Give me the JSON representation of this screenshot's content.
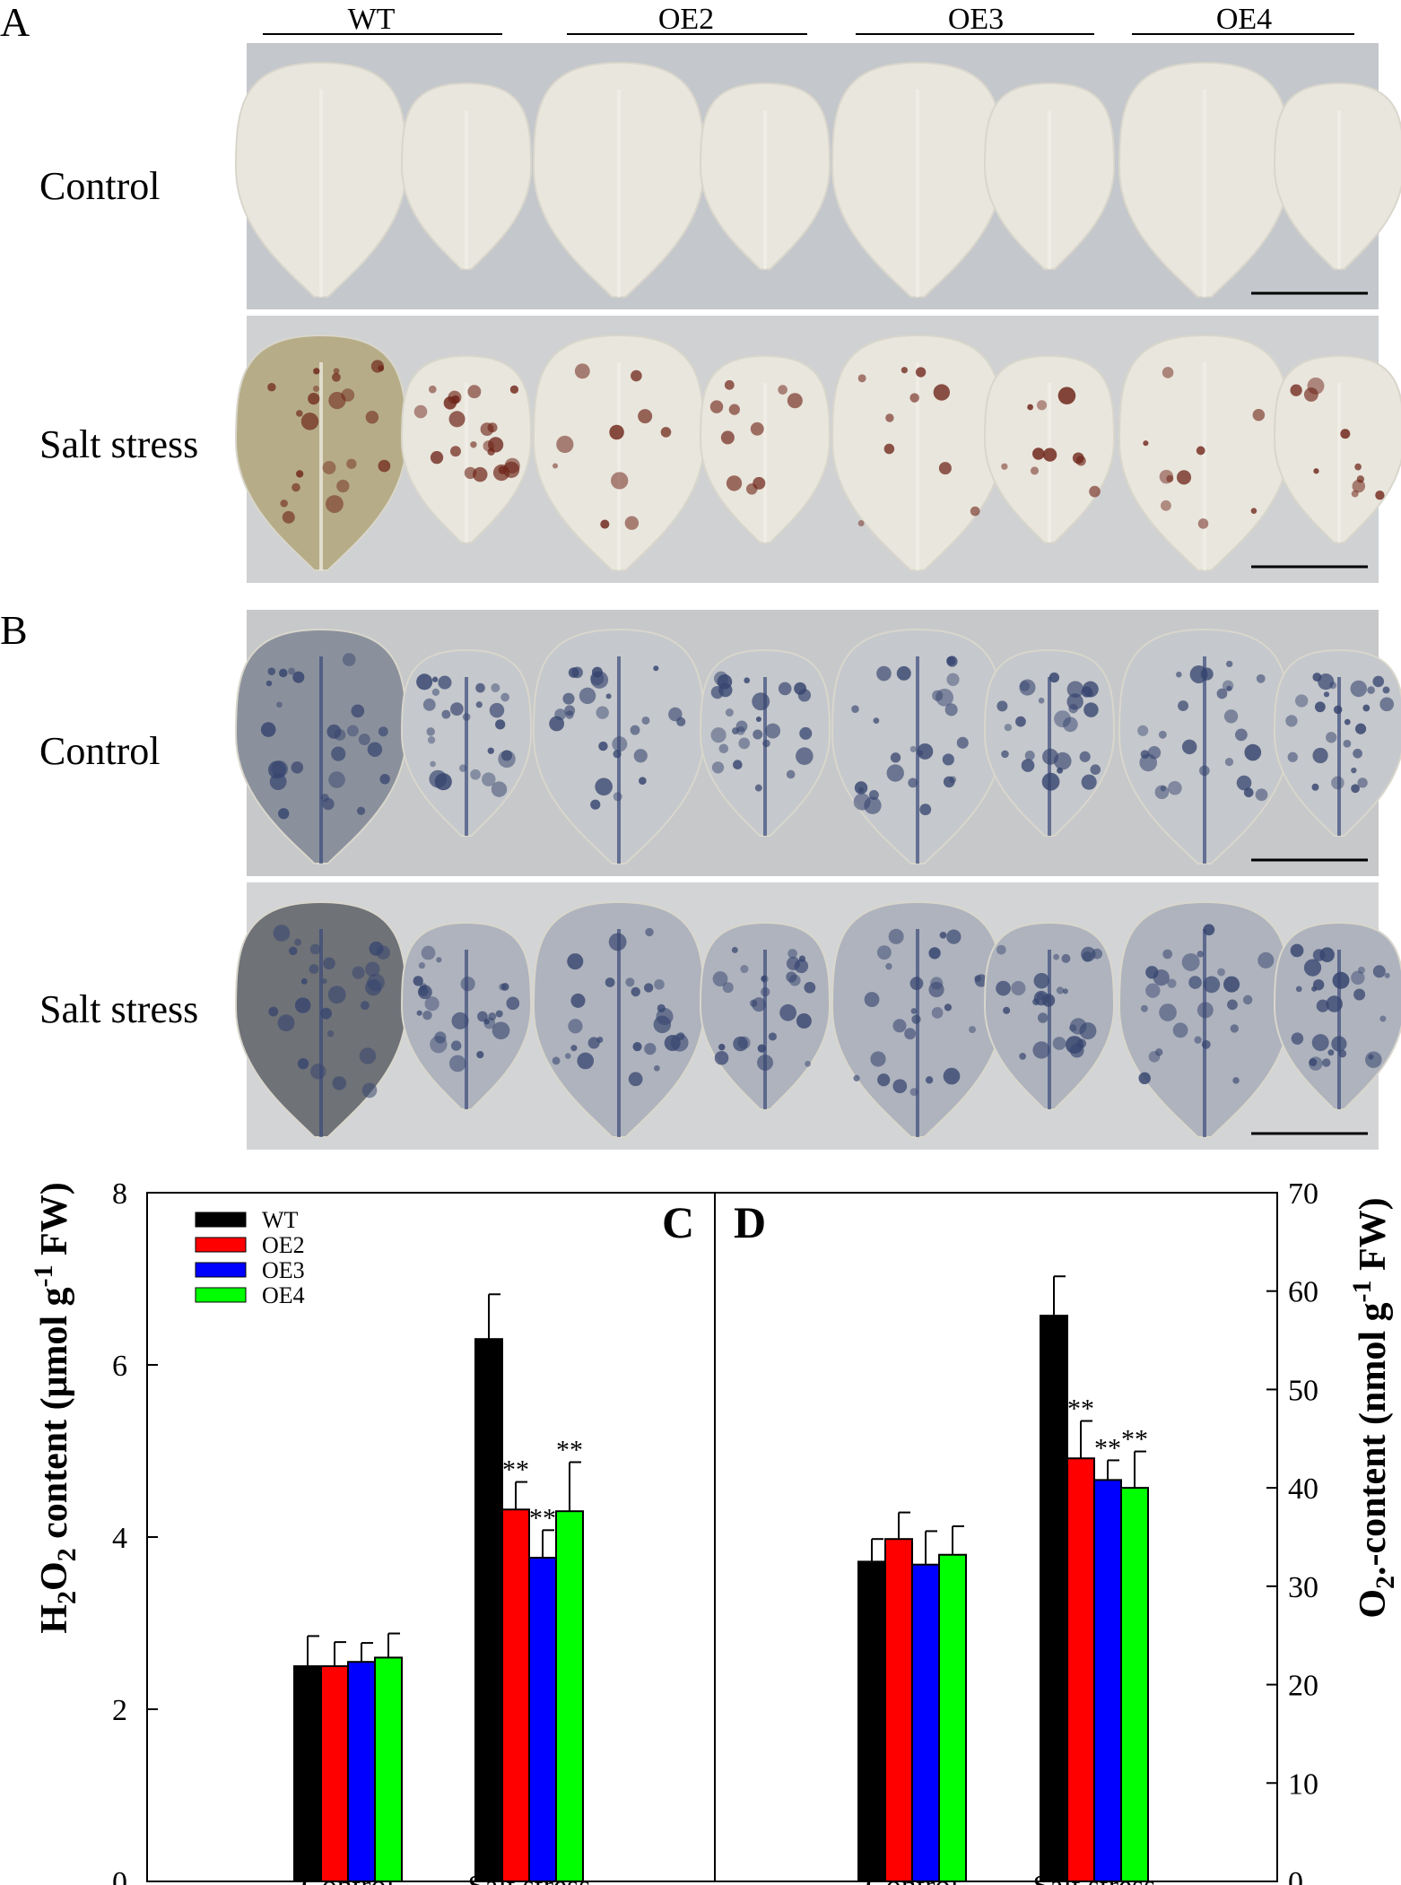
{
  "panel_letters": {
    "a": "A",
    "b": "B",
    "c": "C",
    "d": "D"
  },
  "genotypes": [
    "WT",
    "OE2",
    "OE3",
    "OE4"
  ],
  "row_labels": {
    "control": "Control",
    "salt": "Salt stress"
  },
  "colors": {
    "WT": "#000000",
    "OE2": "#ff0000",
    "OE3": "#0000ff",
    "OE4": "#00ff00"
  },
  "photo_panels": {
    "A": {
      "stain": "brown",
      "control_bg": "#c4c7cb",
      "salt_bg": "#cfd1d3"
    },
    "B": {
      "stain": "blue",
      "control_bg": "#c6c8ca",
      "salt_bg": "#d3d4d6"
    }
  },
  "chart_data": [
    {
      "panel": "C",
      "type": "bar",
      "categories": [
        "Control",
        "Salt stress"
      ],
      "ylabel": {
        "pre": "H",
        "sub1": "2",
        "mid": "O",
        "sub2": "2",
        "post": " content (μmol g",
        "sup": "-1",
        "end": " FW)"
      },
      "ylim": [
        0,
        8
      ],
      "yticks": [
        0,
        2,
        4,
        6,
        8
      ],
      "series": [
        {
          "name": "WT",
          "values": [
            2.5,
            6.3
          ],
          "errors": [
            0.35,
            0.52
          ]
        },
        {
          "name": "OE2",
          "values": [
            2.5,
            4.32
          ],
          "errors": [
            0.28,
            0.32
          ]
        },
        {
          "name": "OE3",
          "values": [
            2.55,
            3.76
          ],
          "errors": [
            0.22,
            0.32
          ]
        },
        {
          "name": "OE4",
          "values": [
            2.6,
            4.3
          ],
          "errors": [
            0.28,
            0.57
          ]
        }
      ],
      "significance": [
        {
          "category": 1,
          "series": "OE2",
          "text": "**"
        },
        {
          "category": 1,
          "series": "OE3",
          "text": "**"
        },
        {
          "category": 1,
          "series": "OE4",
          "text": "**"
        }
      ],
      "legend": [
        "WT",
        "OE2",
        "OE3",
        "OE4"
      ],
      "legend_position": "top-left"
    },
    {
      "panel": "D",
      "type": "bar",
      "categories": [
        "Control",
        "Salt stress"
      ],
      "ylabel": {
        "pre": "O",
        "sub1": "2",
        "mid": ".-",
        "sub2": "",
        "post": "content (nmol g",
        "sup": "-1",
        "end": " FW)"
      },
      "ylim": [
        0,
        70
      ],
      "yticks": [
        0,
        10,
        20,
        30,
        40,
        50,
        60,
        70
      ],
      "series": [
        {
          "name": "WT",
          "values": [
            32.5,
            57.5
          ],
          "errors": [
            2.3,
            4.0
          ]
        },
        {
          "name": "OE2",
          "values": [
            34.8,
            43.0
          ],
          "errors": [
            2.7,
            3.8
          ]
        },
        {
          "name": "OE3",
          "values": [
            32.2,
            40.8
          ],
          "errors": [
            3.4,
            2.0
          ]
        },
        {
          "name": "OE4",
          "values": [
            33.2,
            40.0
          ],
          "errors": [
            2.9,
            3.7
          ]
        }
      ],
      "significance": [
        {
          "category": 1,
          "series": "OE2",
          "text": "**"
        },
        {
          "category": 1,
          "series": "OE3",
          "text": "**"
        },
        {
          "category": 1,
          "series": "OE4",
          "text": "**"
        }
      ]
    }
  ]
}
